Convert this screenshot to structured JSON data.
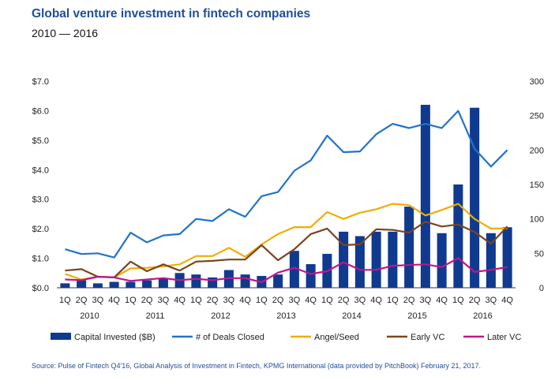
{
  "chart_data": {
    "type": "bar",
    "title": "Global venture investment in fintech companies",
    "subtitle": "2010 — 2016",
    "quarters": [
      "1Q",
      "2Q",
      "3Q",
      "4Q",
      "1Q",
      "2Q",
      "3Q",
      "4Q",
      "1Q",
      "2Q",
      "3Q",
      "4Q",
      "1Q",
      "2Q",
      "3Q",
      "4Q",
      "1Q",
      "2Q",
      "3Q",
      "4Q",
      "1Q",
      "2Q",
      "3Q",
      "4Q",
      "1Q",
      "2Q",
      "3Q",
      "4Q"
    ],
    "years": [
      "2010",
      "2011",
      "2012",
      "2013",
      "2014",
      "2015",
      "2016"
    ],
    "y_left_ticks": [
      "$0.0",
      "$1.0",
      "$2.0",
      "$3.0",
      "$4.0",
      "$5.0",
      "$6.0",
      "$7.0"
    ],
    "y_right_ticks": [
      "0",
      "50",
      "100",
      "150",
      "200",
      "250",
      "300"
    ],
    "ylim_left": [
      0,
      7
    ],
    "ylim_right": [
      0,
      300
    ],
    "series": [
      {
        "name": "Capital Invested ($B)",
        "type": "bar",
        "axis": "left",
        "color": "#0f3a8f",
        "values": [
          0.15,
          0.25,
          0.15,
          0.2,
          0.2,
          0.25,
          0.3,
          0.5,
          0.45,
          0.35,
          0.6,
          0.45,
          0.4,
          0.45,
          1.25,
          0.8,
          1.15,
          1.9,
          1.75,
          1.9,
          1.9,
          2.75,
          6.2,
          1.85,
          3.5,
          6.1,
          1.85,
          2.05
        ]
      },
      {
        "name": "# of Deals Closed",
        "type": "line",
        "axis": "right",
        "color": "#2173c9",
        "values": [
          56,
          49,
          50,
          44,
          80,
          66,
          76,
          78,
          100,
          97,
          114,
          103,
          133,
          139,
          170,
          185,
          221,
          197,
          198,
          223,
          238,
          232,
          238,
          232,
          257,
          202,
          176,
          200
        ]
      },
      {
        "name": "Angel/Seed",
        "type": "line",
        "axis": "right",
        "color": "#f0ad00",
        "values": [
          20,
          12,
          16,
          15,
          28,
          29,
          31,
          34,
          46,
          46,
          58,
          45,
          63,
          78,
          88,
          88,
          110,
          100,
          109,
          114,
          122,
          120,
          105,
          113,
          122,
          100,
          86,
          86
        ]
      },
      {
        "name": "Early VC",
        "type": "line",
        "axis": "right",
        "color": "#7b4420",
        "values": [
          25,
          27,
          16,
          15,
          38,
          24,
          34,
          25,
          38,
          39,
          41,
          41,
          62,
          40,
          56,
          78,
          86,
          62,
          63,
          85,
          84,
          80,
          96,
          89,
          92,
          81,
          64,
          89
        ]
      },
      {
        "name": "Later VC",
        "type": "line",
        "axis": "right",
        "color": "#c0158c",
        "values": [
          12,
          11,
          16,
          15,
          10,
          12,
          14,
          11,
          13,
          11,
          14,
          14,
          8,
          22,
          29,
          20,
          24,
          37,
          26,
          26,
          32,
          33,
          34,
          30,
          43,
          23,
          26,
          30
        ]
      }
    ]
  },
  "source": "Source: Pulse of Fintech Q4'16, Global Analysis of Investment in Fintech, KPMG International (data provided by PitchBook) February 21, 2017."
}
